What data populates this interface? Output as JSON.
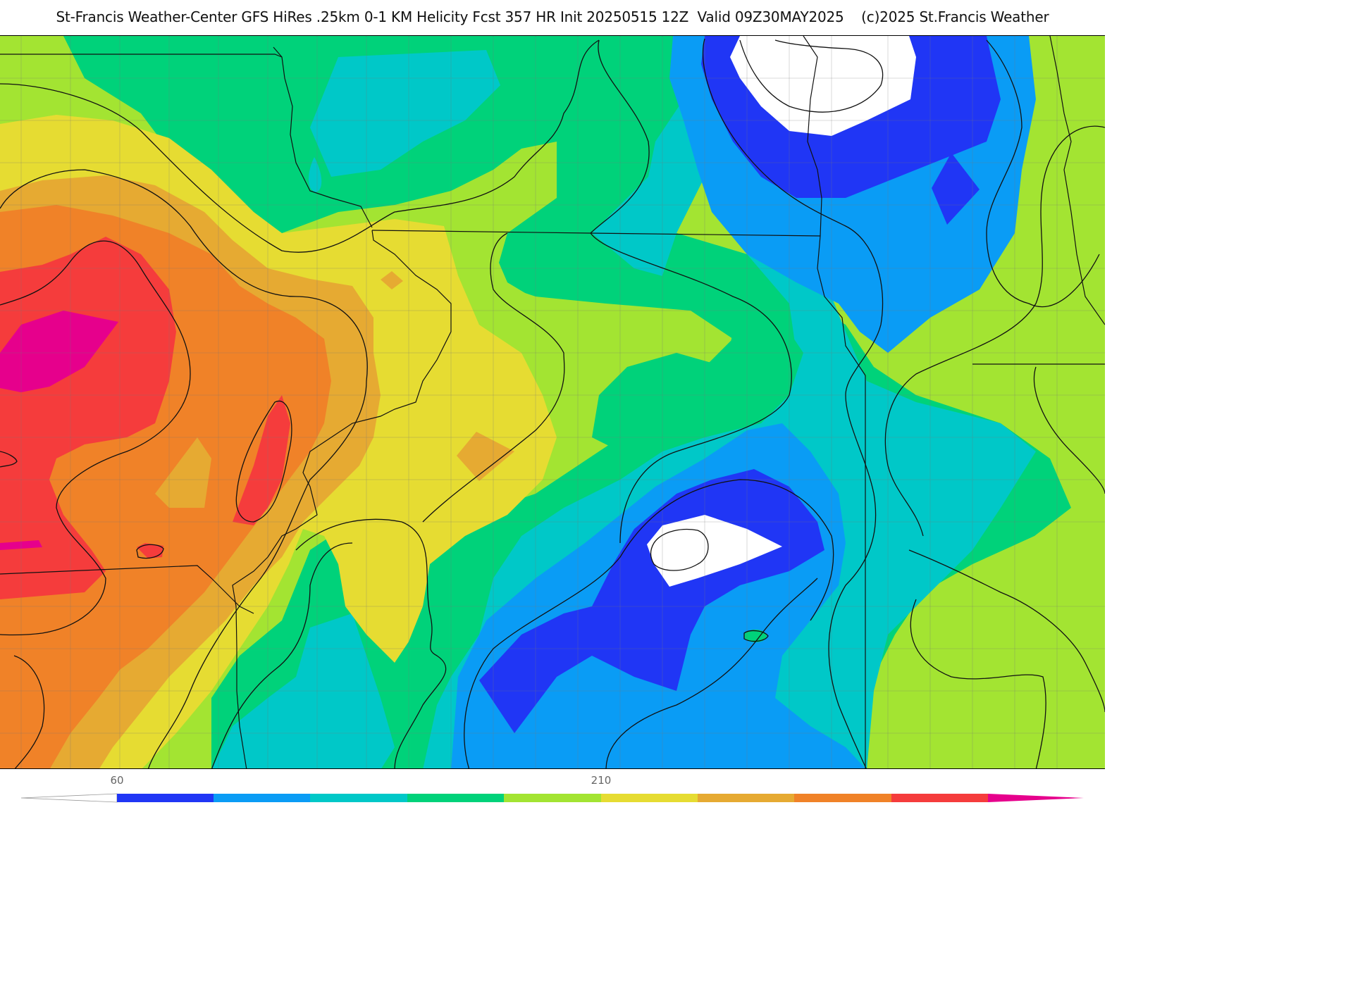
{
  "title": "St-Francis Weather-Center GFS HiRes .25km 0-1 KM Helicity Fcst 357 HR Init 20250515 12Z  Valid 09Z30MAY2025    (c)2025 St.Francis Weather",
  "legend": {
    "ticks": [
      "60",
      "210"
    ],
    "colors": [
      "#ffffff",
      "#2036f5",
      "#0a9cf5",
      "#00c8c8",
      "#00d27a",
      "#a3e432",
      "#e6dc32",
      "#e6aa32",
      "#f08228",
      "#f53c3c",
      "#e6008c"
    ]
  },
  "map": {
    "fill_colors": {
      "white": "#ffffff",
      "blue": "#2036f5",
      "light_blue": "#0a9cf5",
      "cyan": "#00c8c8",
      "green": "#00d27a",
      "yellow_green": "#a3e432",
      "yellow": "#e6dc32",
      "light_orange": "#e6aa32",
      "orange": "#f08228",
      "red": "#f53c3c",
      "magenta": "#e6008c"
    }
  }
}
